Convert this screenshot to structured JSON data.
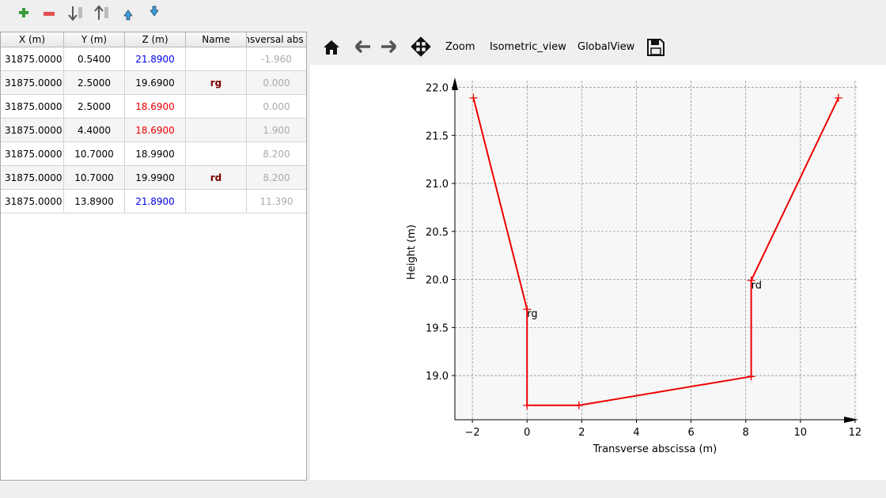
{
  "table": {
    "columns": [
      "X (m)",
      "Y (m)",
      "Z (m)",
      "Name",
      "Transversal abs (m)"
    ],
    "rows": [
      [
        "31875.0000",
        "0.5400",
        "21.8900",
        "",
        "-1.960"
      ],
      [
        "31875.0000",
        "2.5000",
        "19.6900",
        "rg",
        "0.000"
      ],
      [
        "31875.0000",
        "2.5000",
        "18.6900",
        "",
        "0.000"
      ],
      [
        "31875.0000",
        "4.4000",
        "18.6900",
        "",
        "1.900"
      ],
      [
        "31875.0000",
        "10.7000",
        "18.9900",
        "",
        "8.200"
      ],
      [
        "31875.0000",
        "10.7000",
        "19.9900",
        "rd",
        "8.200"
      ],
      [
        "31875.0000",
        "13.8900",
        "21.8900",
        "",
        "11.390"
      ]
    ],
    "z_colors": [
      "#0000ee",
      "#000000",
      "#ee0000",
      "#ee0000",
      "#000000",
      "#000000",
      "#0000ee"
    ]
  },
  "plot_toolbar": {
    "buttons": [
      "Zoom",
      "Isometric_view",
      "GlobalView"
    ]
  },
  "chart_data": {
    "type": "line",
    "xlabel": "Transverse abscissa (m)",
    "ylabel": "Height (m)",
    "x": [
      -1.96,
      0,
      0,
      1.9,
      8.2,
      8.2,
      11.39
    ],
    "values": [
      21.89,
      19.69,
      18.69,
      18.69,
      18.99,
      19.99,
      21.89
    ],
    "point_labels": [
      null,
      "rg",
      null,
      null,
      null,
      "rd",
      null
    ],
    "color": "#ee0000",
    "xlim": [
      -2.64,
      12.06
    ],
    "ylim": [
      18.54,
      22.07
    ],
    "xticks": [
      {
        "value": -2,
        "label": "−2"
      },
      0,
      2,
      4,
      6,
      8,
      10,
      12
    ],
    "yticks": [
      {
        "value": 19,
        "label": "19.0"
      },
      19.5,
      {
        "value": 20,
        "label": "20.0"
      },
      20.5,
      {
        "value": 21,
        "label": "21.0"
      },
      21.5,
      {
        "value": 22,
        "label": "22.0"
      }
    ],
    "grid": true
  }
}
